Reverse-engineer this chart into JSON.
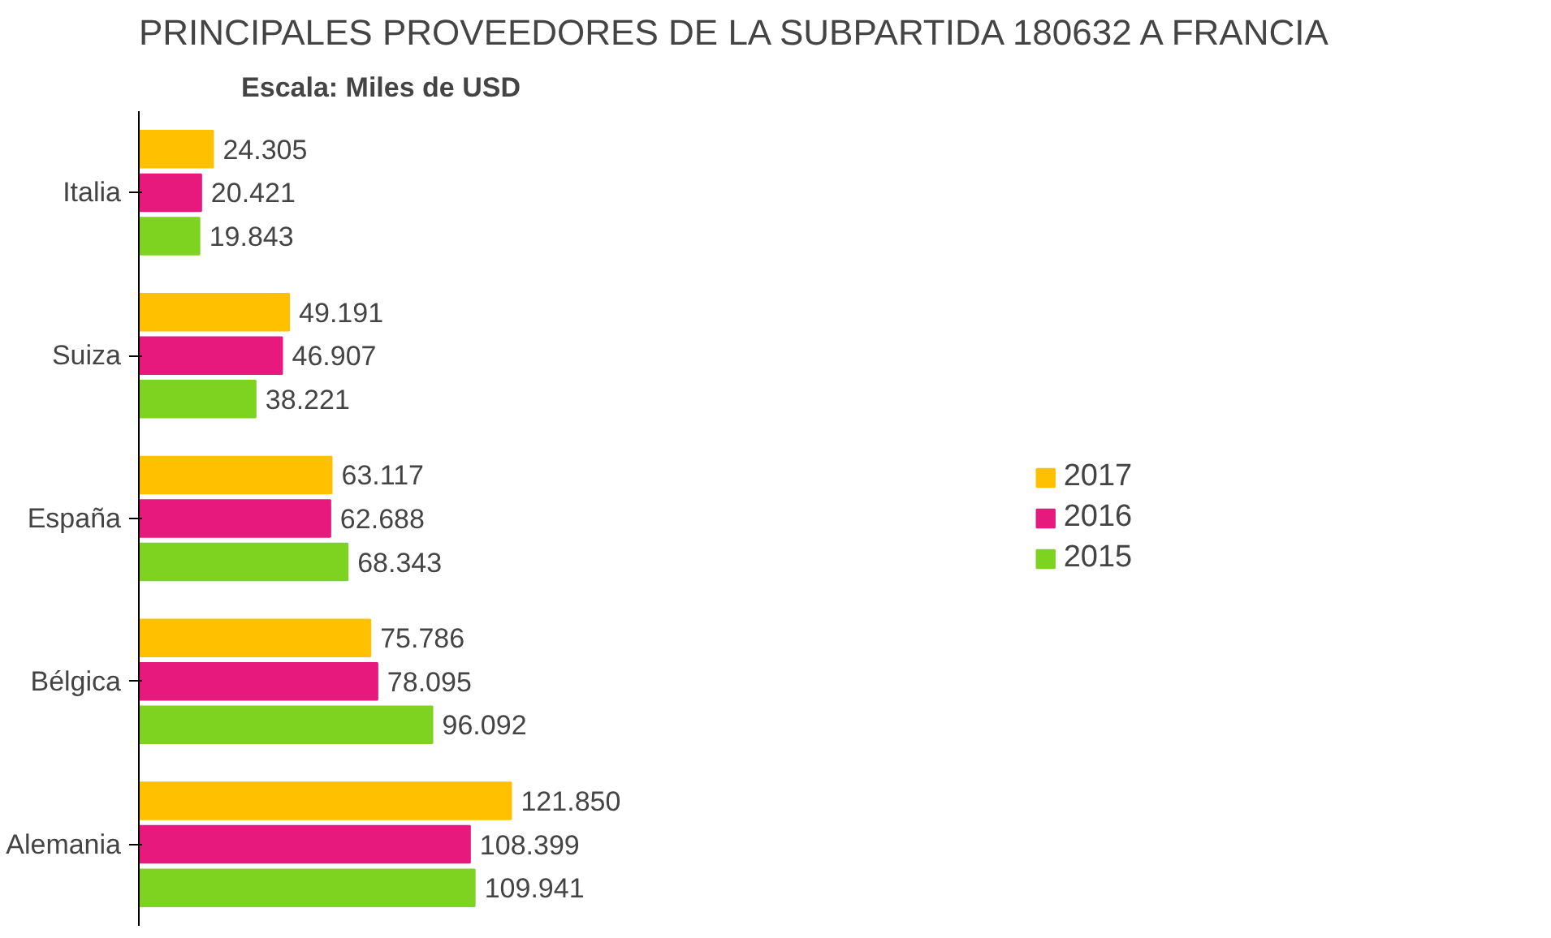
{
  "chart_data": {
    "type": "bar",
    "orientation": "horizontal",
    "title": "PRINCIPALES PROVEEDORES DE LA SUBPARTIDA 180632 A FRANCIA",
    "subtitle": "Escala: Miles de USD",
    "categories": [
      "Italia",
      "Suiza",
      "España",
      "Bélgica",
      "Alemania"
    ],
    "series": [
      {
        "name": "2017",
        "color": "#ffc000",
        "values": [
          24305,
          49191,
          63117,
          75786,
          121850
        ],
        "value_labels": [
          "24.305",
          "49.191",
          "63.117",
          "75.786",
          "121.850"
        ]
      },
      {
        "name": "2016",
        "color": "#e8197d",
        "values": [
          20421,
          46907,
          62688,
          78095,
          108399
        ],
        "value_labels": [
          "20.421",
          "46.907",
          "62.688",
          "78.095",
          "108.399"
        ]
      },
      {
        "name": "2015",
        "color": "#7ed321",
        "values": [
          19843,
          38221,
          68343,
          96092,
          109941
        ],
        "value_labels": [
          "19.843",
          "38.221",
          "68.343",
          "96.092",
          "109.941"
        ]
      }
    ],
    "legend": "right",
    "grid": false,
    "tick_labels": "y"
  }
}
